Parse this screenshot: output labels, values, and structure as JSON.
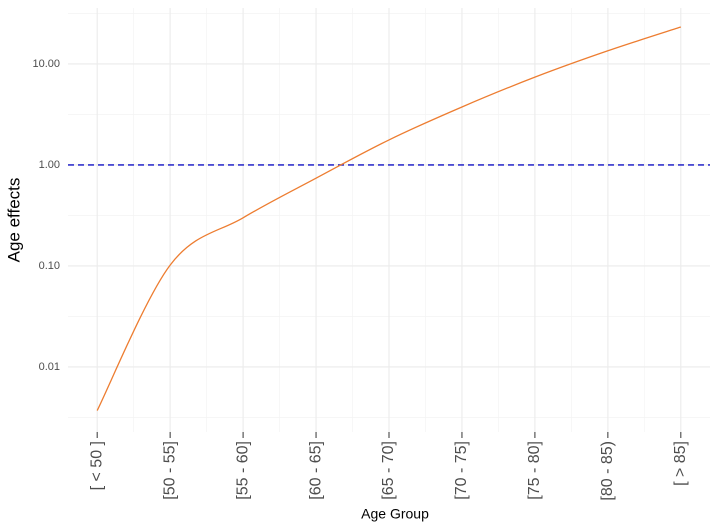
{
  "chart_data": {
    "type": "line",
    "log_y": true,
    "grid": true,
    "x_label": "Age Group",
    "y_label": "Age effects",
    "categories": [
      "[ < 50 ]",
      "[50 - 55]",
      "[55 - 60]",
      "[60 - 65]",
      "[65 - 70]",
      "[70 - 75]",
      "[75 - 80]",
      "[80 - 85)",
      "[ > 85]"
    ],
    "series": [
      {
        "color": "#ed7d31",
        "values": [
          0.0037,
          0.102,
          0.3,
          0.74,
          1.77,
          3.75,
          7.4,
          13.5,
          23.2
        ]
      }
    ],
    "hline": {
      "value": 1,
      "color": "#3333cc"
    },
    "ylim": [
      0.00227,
      35.8
    ],
    "yticks": [
      {
        "value": 0.01,
        "label": "0.01"
      },
      {
        "value": 0.1,
        "label": "0.10"
      },
      {
        "value": 1,
        "label": "1.00"
      },
      {
        "value": 10,
        "label": "10.00"
      }
    ]
  }
}
